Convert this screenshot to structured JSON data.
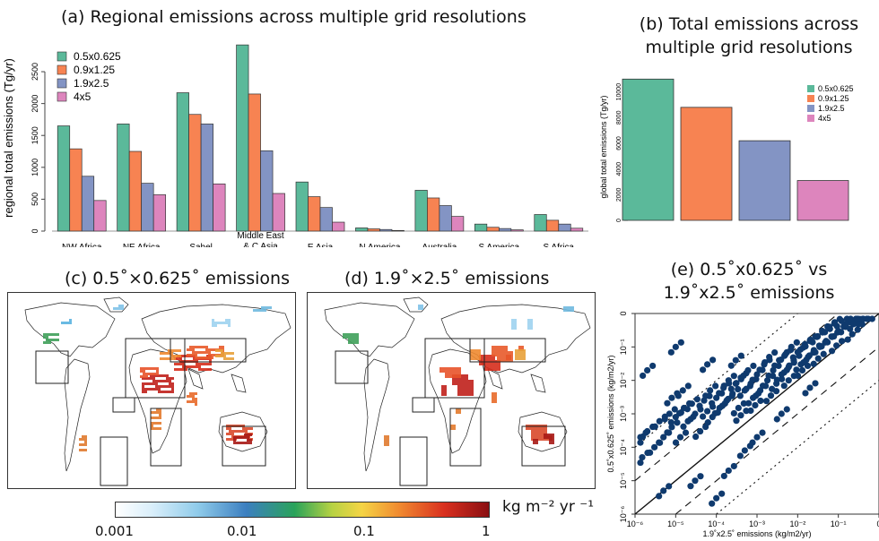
{
  "colors": {
    "res_05": "#5bb99a",
    "res_09": "#f78352",
    "res_19": "#8394c4",
    "res_4": "#dd85bd",
    "scatter_point": "#0f3a6e",
    "land_outline": "#333333"
  },
  "panel_a": {
    "title": "(a) Regional emissions across multiple grid resolutions",
    "ylabel": "regional total emissions (Tg/yr)"
  },
  "panel_b": {
    "title_line1": "(b) Total emissions across",
    "title_line2": "multiple grid resolutions",
    "ylabel": "global total emissions (Tg/yr)"
  },
  "panel_c": {
    "title": "(c) 0.5˚×0.625˚ emissions"
  },
  "panel_d": {
    "title": "(d) 1.9˚×2.5˚ emissions"
  },
  "panel_e": {
    "title_line1": "(e) 0.5˚x0.625˚ vs",
    "title_line2": "1.9˚x2.5˚ emissions",
    "xlabel": "1.9˚x2.5˚ emissions (kg/m2/yr)",
    "ylabel": "0.5˚x0.625˚ emissions (kg/m2/yr)"
  },
  "colorbar": {
    "unit_label": "kg m⁻² yr ⁻¹",
    "ticks": [
      "0.001",
      "0.01",
      "0.1",
      "1"
    ]
  },
  "chart_data": [
    {
      "type": "bar",
      "categories": [
        "NW Africa",
        "NE Africa",
        "Sahel",
        "Middle East\n& C Asia",
        "E Asia",
        "N America",
        "Australia",
        "S America",
        "S Africa"
      ],
      "series": [
        {
          "name": "0.5x0.625",
          "color": "#5bb99a",
          "values": [
            1650,
            1680,
            2170,
            2920,
            770,
            50,
            640,
            110,
            260
          ]
        },
        {
          "name": "0.9x1.25",
          "color": "#f78352",
          "values": [
            1290,
            1250,
            1830,
            2150,
            540,
            35,
            520,
            60,
            170
          ]
        },
        {
          "name": "1.9x2.5",
          "color": "#8394c4",
          "values": [
            860,
            750,
            1680,
            1260,
            370,
            25,
            400,
            40,
            110
          ]
        },
        {
          "name": "4x5",
          "color": "#dd85bd",
          "values": [
            480,
            570,
            740,
            590,
            140,
            10,
            230,
            20,
            45
          ]
        }
      ],
      "yticks": [
        0,
        500,
        1000,
        1500,
        2000,
        2500
      ],
      "ylim": [
        0,
        2950
      ],
      "legend": "top-left"
    },
    {
      "type": "bar",
      "categories": [
        "0.5x0.625",
        "0.9x1.25",
        "1.9x2.5",
        "4x5"
      ],
      "values": [
        11000,
        8800,
        6200,
        3100
      ],
      "colors": [
        "#5bb99a",
        "#f78352",
        "#8394c4",
        "#dd85bd"
      ],
      "yticks": [
        0,
        2000,
        4000,
        6000,
        8000,
        10000
      ],
      "ylim": [
        0,
        11300
      ],
      "legend": "top-right"
    },
    {
      "type": "scatter",
      "xscale": "log",
      "yscale": "log",
      "xlim": [
        1e-06,
        1
      ],
      "ylim": [
        1e-06,
        1
      ],
      "xticks": [
        "10⁻⁶",
        "10⁻⁵",
        "10⁻⁴",
        "10⁻³",
        "10⁻²",
        "10⁻¹",
        "0"
      ],
      "yticks": [
        "0",
        "10⁻¹",
        "10⁻²",
        "10⁻³",
        "10⁻⁴",
        "10⁻⁵",
        "10⁻⁶"
      ],
      "points": [
        [
          1e-06,
          0.0002
        ],
        [
          1.5e-06,
          5e-05
        ],
        [
          2e-06,
          0.0003
        ],
        [
          3e-06,
          0.0001
        ],
        [
          4e-06,
          0.0006
        ],
        [
          5e-06,
          0.0002
        ],
        [
          7e-06,
          0.001
        ],
        [
          8e-06,
          0.0004
        ],
        [
          1e-05,
          0.0008
        ],
        [
          1.3e-05,
          0.0002
        ],
        [
          1.6e-05,
          0.0015
        ],
        [
          2e-05,
          0.0006
        ],
        [
          2.5e-05,
          0.002
        ],
        [
          3e-05,
          0.001
        ],
        [
          4e-05,
          0.0003
        ],
        [
          5e-05,
          0.0025
        ],
        [
          6e-05,
          0.0012
        ],
        [
          7e-05,
          0.005
        ],
        [
          8e-05,
          0.0008
        ],
        [
          0.0001,
          0.003
        ],
        [
          0.00012,
          0.0015
        ],
        [
          0.00015,
          0.006
        ],
        [
          0.00018,
          0.0025
        ],
        [
          0.0002,
          0.01
        ],
        [
          0.00025,
          0.004
        ],
        [
          0.0003,
          0.008
        ],
        [
          0.00035,
          0.0015
        ],
        [
          0.0004,
          0.012
        ],
        [
          0.0005,
          0.005
        ],
        [
          0.0006,
          0.02
        ],
        [
          0.0007,
          0.008
        ],
        [
          0.0008,
          0.003
        ],
        [
          0.001,
          0.015
        ],
        [
          0.0012,
          0.005
        ],
        [
          0.0015,
          0.03
        ],
        [
          0.0018,
          0.01
        ],
        [
          0.002,
          0.05
        ],
        [
          0.0025,
          0.02
        ],
        [
          0.003,
          0.008
        ],
        [
          0.0035,
          0.04
        ],
        [
          0.004,
          0.015
        ],
        [
          0.005,
          0.06
        ],
        [
          0.006,
          0.025
        ],
        [
          0.007,
          0.1
        ],
        [
          0.008,
          0.04
        ],
        [
          0.01,
          0.07
        ],
        [
          0.012,
          0.03
        ],
        [
          0.015,
          0.12
        ],
        [
          0.018,
          0.05
        ],
        [
          0.02,
          0.15
        ],
        [
          0.025,
          0.08
        ],
        [
          0.03,
          0.2
        ],
        [
          0.035,
          0.1
        ],
        [
          0.04,
          0.3
        ],
        [
          0.05,
          0.15
        ],
        [
          0.06,
          0.4
        ],
        [
          0.07,
          0.2
        ],
        [
          0.08,
          0.5
        ],
        [
          0.1,
          0.3
        ],
        [
          0.12,
          0.6
        ],
        [
          0.15,
          0.4
        ],
        [
          0.2,
          0.8
        ],
        [
          0.25,
          0.5
        ],
        [
          0.3,
          0.9
        ],
        [
          1e-05,
          0.1
        ],
        [
          2e-06,
          0.02
        ],
        [
          3e-05,
          1e-05
        ],
        [
          0.0001,
          3e-06
        ],
        [
          5e-06,
          5e-06
        ],
        [
          0.0002,
          2e-05
        ],
        [
          0.001,
          0.0002
        ],
        [
          0.004,
          0.001
        ],
        [
          0.02,
          0.006
        ],
        [
          0.0005,
          8e-05
        ],
        [
          8e-06,
          0.003
        ],
        [
          0.0003,
          0.04
        ],
        [
          6e-05,
          0.03
        ],
        [
          1.5e-05,
          0.005
        ],
        [
          0.0004,
          0.0009
        ],
        [
          0.0009,
          0.0018
        ],
        [
          0.0022,
          0.0035
        ],
        [
          0.006,
          0.01
        ],
        [
          0.013,
          0.02
        ],
        [
          0.032,
          0.045
        ],
        [
          0.09,
          0.11
        ],
        [
          0.22,
          0.24
        ],
        [
          0.4,
          0.7
        ],
        [
          0.5,
          0.9
        ]
      ],
      "lines": [
        "1:1 solid",
        "factor 10 dashed",
        "factor 100 dotted"
      ]
    }
  ]
}
